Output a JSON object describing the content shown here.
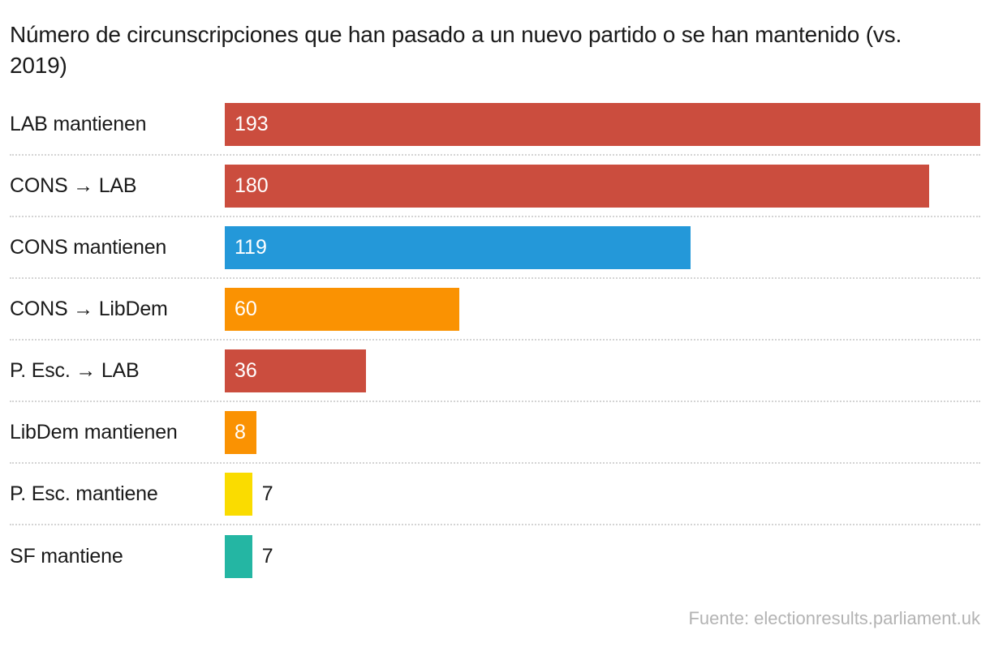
{
  "header": {
    "title": "Número de circunscripciones que han pasado a un nuevo partido o se han mantenido (vs. 2019)"
  },
  "footer": {
    "source": "Fuente: electionresults.parliament.uk"
  },
  "colors": {
    "red": "#CB4D3E",
    "blue": "#2498D9",
    "orange": "#FA9202",
    "yellow": "#FADC00",
    "teal": "#24B6A3",
    "text": "#1a1a1a",
    "value_inside_text": "#ffffff",
    "source_text": "#b3b3b3",
    "separator": "#d4d4d4",
    "background": "#ffffff"
  },
  "chart_data": {
    "type": "bar",
    "orientation": "horizontal",
    "title": "Número de circunscripciones que han pasado a un nuevo partido o se han mantenido (vs. 2019)",
    "categories": [
      "LAB mantienen",
      "CONS → LAB",
      "CONS mantienen",
      "CONS → LibDem",
      "P. Esc. → LAB",
      "LibDem mantienen",
      "P. Esc. mantiene",
      "SF mantiene"
    ],
    "values": [
      193,
      180,
      119,
      60,
      36,
      8,
      7,
      7
    ],
    "bar_colors": [
      "#CB4D3E",
      "#CB4D3E",
      "#2498D9",
      "#FA9202",
      "#CB4D3E",
      "#FA9202",
      "#FADC00",
      "#24B6A3"
    ],
    "value_labels": [
      "193",
      "180",
      "119",
      "60",
      "36",
      "8",
      "7",
      "7"
    ],
    "xlim": [
      0,
      193
    ],
    "xlabel": "",
    "ylabel": "",
    "grid": false,
    "legend": "none",
    "source": "Fuente: electionresults.parliament.uk"
  }
}
